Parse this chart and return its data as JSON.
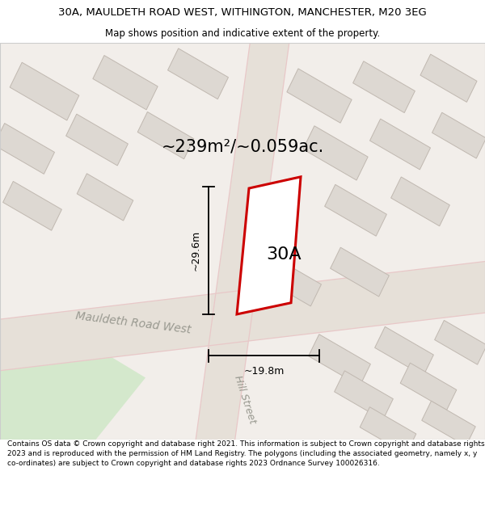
{
  "title": "30A, MAULDETH ROAD WEST, WITHINGTON, MANCHESTER, M20 3EG",
  "subtitle": "Map shows position and indicative extent of the property.",
  "footer": "Contains OS data © Crown copyright and database right 2021. This information is subject to Crown copyright and database rights 2023 and is reproduced with the permission of HM Land Registry. The polygons (including the associated geometry, namely x, y co-ordinates) are subject to Crown copyright and database rights 2023 Ordnance Survey 100026316.",
  "area_label": "~239m²/~0.059ac.",
  "width_label": "~19.8m",
  "height_label": "~29.6m",
  "property_label": "30A",
  "road_label": "Mauldeth Road West",
  "street_label": "Hill Street",
  "bg_color": "#f2eeea",
  "road_fill": "#e6e0d8",
  "road_edge_color": "#e8c8c8",
  "building_fill": "#ddd8d2",
  "building_edge": "#c0b8b0",
  "red_color": "#cc0000",
  "green_color": "#d4e8cc",
  "white": "#ffffff",
  "text_gray": "#999990",
  "title_fontsize": 9.5,
  "subtitle_fontsize": 8.5,
  "footer_fontsize": 6.5
}
